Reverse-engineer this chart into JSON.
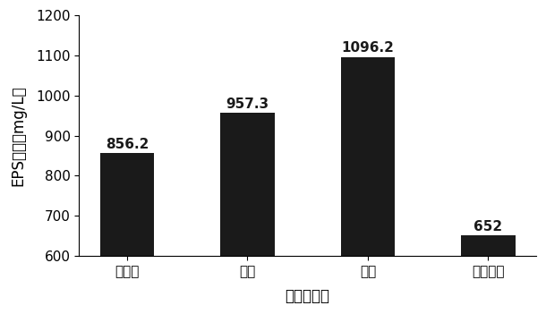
{
  "categories": [
    "卡拉胶",
    "明胶",
    "琼脂",
    "海藻酸钙"
  ],
  "values": [
    856.2,
    957.3,
    1096.2,
    652
  ],
  "bar_color": "#1a1a1a",
  "ylim": [
    600,
    1200
  ],
  "yticks": [
    600,
    700,
    800,
    900,
    1000,
    1100,
    1200
  ],
  "ylabel": "EPS含量（mg/L）",
  "xlabel": "固定化材料",
  "title": "",
  "bar_width": 0.45,
  "label_fontsize": 11,
  "axis_fontsize": 12,
  "tick_fontsize": 11,
  "value_labels": [
    "856.2",
    "957.3",
    "1096.2",
    "652"
  ],
  "background_color": "#ffffff"
}
